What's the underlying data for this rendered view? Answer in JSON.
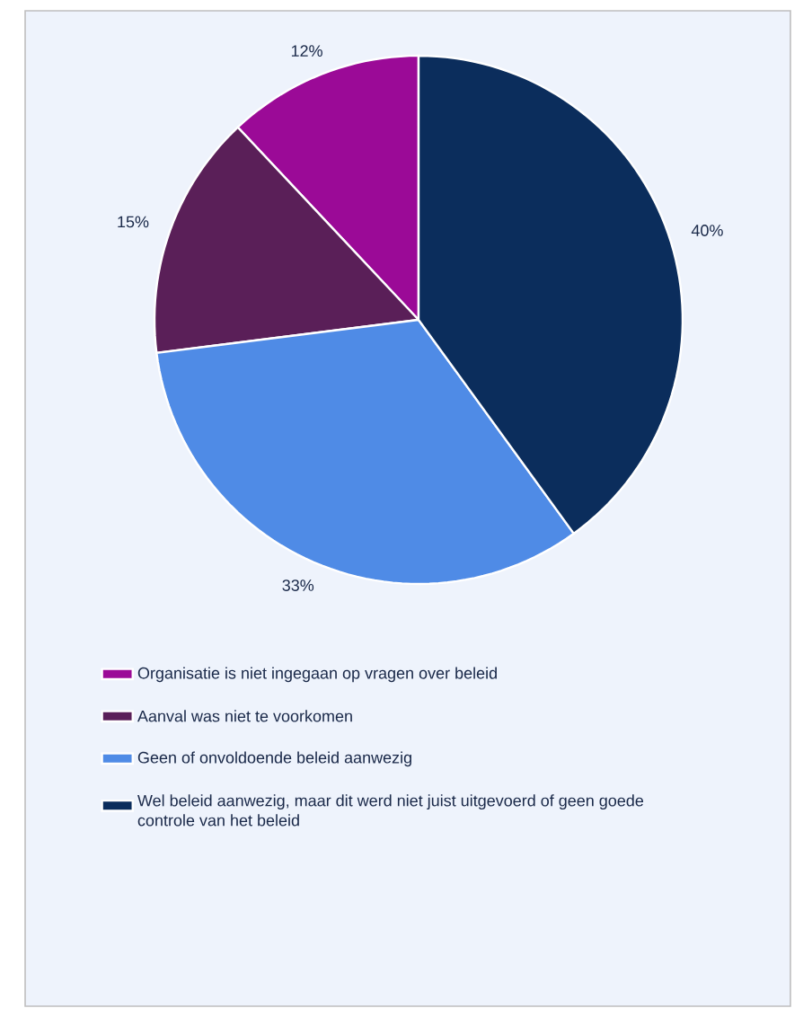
{
  "chart_data": {
    "type": "pie",
    "categories": [
      "Organisatie is niet ingegaan op vragen over beleid",
      "Aanval was niet te voorkomen",
      "Geen of onvoldoende beleid aanwezig",
      "Wel beleid aanwezig, maar dit werd niet juist uitgevoerd of geen goede controle van het beleid"
    ],
    "values": [
      12,
      15,
      33,
      40
    ],
    "value_labels": [
      "12%",
      "15%",
      "33%",
      "40%"
    ],
    "colors": [
      "#9b0a97",
      "#5a1f58",
      "#4f8be6",
      "#0b2d5c"
    ],
    "legend": "bottom"
  }
}
